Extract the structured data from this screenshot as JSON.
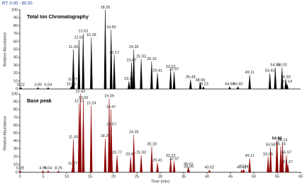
{
  "header": "RT: 0.00 - 60.00",
  "chart_data": [
    {
      "type": "spectrum",
      "title": "Total Ion Chromatography",
      "ylabel": "Relative Abundance",
      "color": "#000000",
      "x": [
        0.22,
        3.89,
        6.04,
        10.96,
        11.27,
        11.43,
        12.63,
        13.53,
        15.28,
        18.25,
        19.5,
        20.17,
        23.32,
        23.87,
        24.35,
        25.93,
        28.16,
        29.41,
        32.22,
        32.97,
        36.48,
        38.56,
        39.23,
        44.84,
        46.6,
        49.11,
        53.43,
        54.59,
        56.03,
        56.83,
        57.14
      ],
      "x_labels": [
        "0.22",
        "3.89",
        "6.04",
        "10.96",
        "11.27",
        "11.43",
        "12.63",
        "13.53",
        "15.28",
        "18.25",
        "19.50",
        "20.17",
        "23.32",
        "23.87",
        "24.35",
        "25.93",
        "28.16",
        "29.41",
        "32.22",
        "32.97",
        "36.48",
        "38.56",
        "39.23",
        "44.84",
        "46.60",
        "49.11",
        "53.43",
        "54.59",
        "56.03",
        "56.83",
        "57.14"
      ],
      "values": [
        2,
        2,
        2,
        3,
        9,
        50,
        62,
        70,
        65,
        100,
        75,
        43,
        10,
        33,
        50,
        38,
        35,
        20,
        25,
        22,
        12,
        8,
        3,
        3,
        3,
        18,
        20,
        27,
        27,
        12,
        6
      ],
      "xlim": [
        0,
        60
      ],
      "ylim": [
        0,
        100
      ],
      "yticks": [
        0,
        10,
        20,
        30,
        40,
        50,
        60,
        70,
        80,
        90,
        100
      ]
    },
    {
      "type": "spectrum",
      "title": "Base peak",
      "ylabel": "Relative Abundance",
      "xlabel": "Time (min)",
      "color": "#8b0000",
      "x": [
        0.09,
        4.95,
        6.04,
        8.25,
        11.27,
        11.43,
        12.67,
        12.93,
        13.56,
        15.24,
        18.25,
        19.09,
        19.47,
        19.57,
        20.77,
        23.67,
        24.35,
        25.93,
        28.18,
        29.41,
        32.22,
        32.97,
        36.01,
        36.09,
        40.52,
        47.41,
        47.84,
        49.11,
        53.05,
        53.58,
        54.9,
        54.98,
        55.74,
        56.13,
        56.97,
        57.27
      ],
      "x_labels": [
        "0.09",
        "4.95",
        "6.04",
        "8.25",
        "11.27",
        "11.43",
        "12.67",
        "12.93",
        "13.56",
        "15.24",
        "18.25",
        "19.09",
        "19.47",
        "19.57",
        "20.77",
        "23.67",
        "24.35",
        "25.93",
        "28.18",
        "29.41",
        "32.22",
        "32.97",
        "36.01",
        "36.09",
        "40.52",
        "47.41",
        "47.84",
        "49.11",
        "53.05",
        "53.58",
        "54.90",
        "54.98",
        "55.74",
        "56.13",
        "56.97",
        "57.27"
      ],
      "values": [
        2,
        2,
        2,
        2,
        8,
        42,
        88,
        100,
        92,
        85,
        43,
        94,
        80,
        58,
        22,
        20,
        48,
        22,
        33,
        12,
        18,
        14,
        7,
        4,
        3,
        3,
        4,
        18,
        20,
        32,
        40,
        40,
        33,
        38,
        22,
        10
      ],
      "xlim": [
        0,
        60
      ],
      "ylim": [
        0,
        100
      ],
      "yticks": [
        0,
        10,
        20,
        30,
        40,
        50,
        60,
        70,
        80,
        90,
        100
      ],
      "xticks": [
        0,
        5,
        10,
        15,
        20,
        25,
        30,
        35,
        40,
        45,
        50,
        55,
        60
      ]
    }
  ]
}
